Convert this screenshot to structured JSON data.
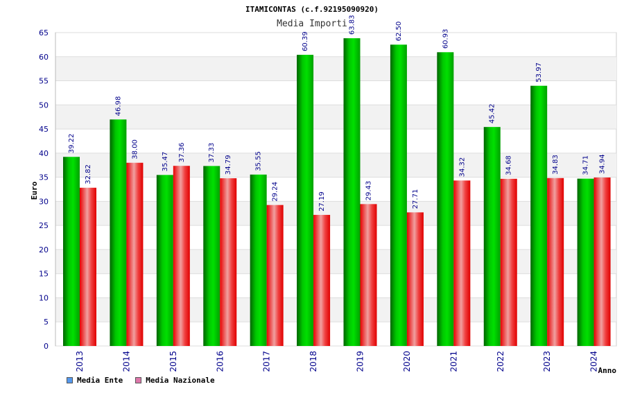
{
  "chart_data": {
    "type": "bar",
    "title": "ITAMICONTAS (c.f.92195090920)",
    "subtitle": "Media Importi",
    "xlabel": "Anno",
    "ylabel": "Euro",
    "ylim": [
      0,
      65
    ],
    "yticks": [
      0,
      5,
      10,
      15,
      20,
      25,
      30,
      35,
      40,
      45,
      50,
      55,
      60,
      65
    ],
    "categories": [
      "2013",
      "2014",
      "2015",
      "2016",
      "2017",
      "2018",
      "2019",
      "2020",
      "2021",
      "2022",
      "2023",
      "2024"
    ],
    "series": [
      {
        "name": "Media Ente",
        "color": "#00b000",
        "legend_color": "#5599ee",
        "values": [
          39.22,
          46.98,
          35.47,
          37.33,
          35.55,
          60.39,
          63.83,
          62.5,
          60.93,
          45.42,
          53.97,
          34.71
        ]
      },
      {
        "name": "Media Nazionale",
        "color": "#ee0000",
        "legend_color": "#dd77aa",
        "values": [
          32.82,
          38.0,
          37.36,
          34.79,
          29.24,
          27.19,
          29.43,
          27.71,
          34.32,
          34.68,
          34.83,
          34.94
        ]
      }
    ],
    "grid": true,
    "legend_position": "bottom-left"
  }
}
